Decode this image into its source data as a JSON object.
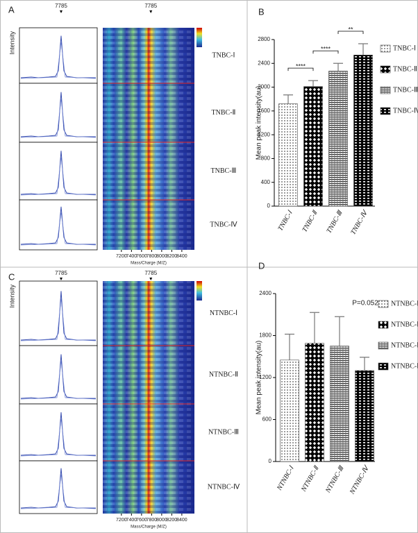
{
  "chart_data": [
    {
      "type": "heatmap",
      "panel": "A",
      "peak": 7785,
      "y_label": "Intensity",
      "x_label": "Mass/Charge (M/Z)",
      "groups": [
        "TNBC-Ⅰ",
        "TNBC-Ⅱ",
        "TNBC-Ⅲ",
        "TNBC-Ⅳ"
      ],
      "xlim": [
        6830,
        8650
      ],
      "xticks": [
        7200,
        7400,
        7600,
        7800,
        8000,
        8200,
        8400
      ]
    },
    {
      "type": "bar",
      "panel": "B",
      "y_label": "Mean peak intensity(au)",
      "categories": [
        "TNBC-Ⅰ",
        "TNBC-Ⅱ",
        "TNBC-Ⅲ",
        "TNBC-Ⅳ"
      ],
      "values": [
        1720,
        2010,
        2270,
        2540
      ],
      "errors": [
        150,
        100,
        130,
        190
      ],
      "patterns": [
        "dots",
        "diamonds",
        "hlines",
        "bricks"
      ],
      "significance": [
        "****",
        "****",
        "**"
      ],
      "ylim": [
        0,
        2800
      ],
      "yticks": [
        0,
        400,
        800,
        1200,
        1600,
        2000,
        2400,
        2800
      ]
    },
    {
      "type": "heatmap",
      "panel": "C",
      "peak": 7785,
      "y_label": "Intensity",
      "x_label": "Mass/Charge (M/Z)",
      "groups": [
        "NTNBC-Ⅰ",
        "NTNBC-Ⅱ",
        "NTNBC-Ⅲ",
        "NTNBC-Ⅳ"
      ],
      "xlim": [
        6830,
        8650
      ],
      "xticks": [
        7200,
        7400,
        7600,
        7800,
        8000,
        8200,
        8400
      ]
    },
    {
      "type": "bar",
      "panel": "D",
      "y_label": "Mean peak intensity(au)",
      "annotation": "P=0.052",
      "categories": [
        "NTNBC-Ⅰ",
        "NTNBC-Ⅱ",
        "NTNBC-Ⅲ",
        "NTNBC-Ⅳ"
      ],
      "values": [
        1450,
        1690,
        1650,
        1300
      ],
      "errors": [
        370,
        440,
        420,
        190
      ],
      "patterns": [
        "dots",
        "diamonds",
        "hlines",
        "bricks"
      ],
      "ylim": [
        0,
        2400
      ],
      "yticks": [
        0,
        600,
        1200,
        1800,
        2400
      ]
    }
  ]
}
